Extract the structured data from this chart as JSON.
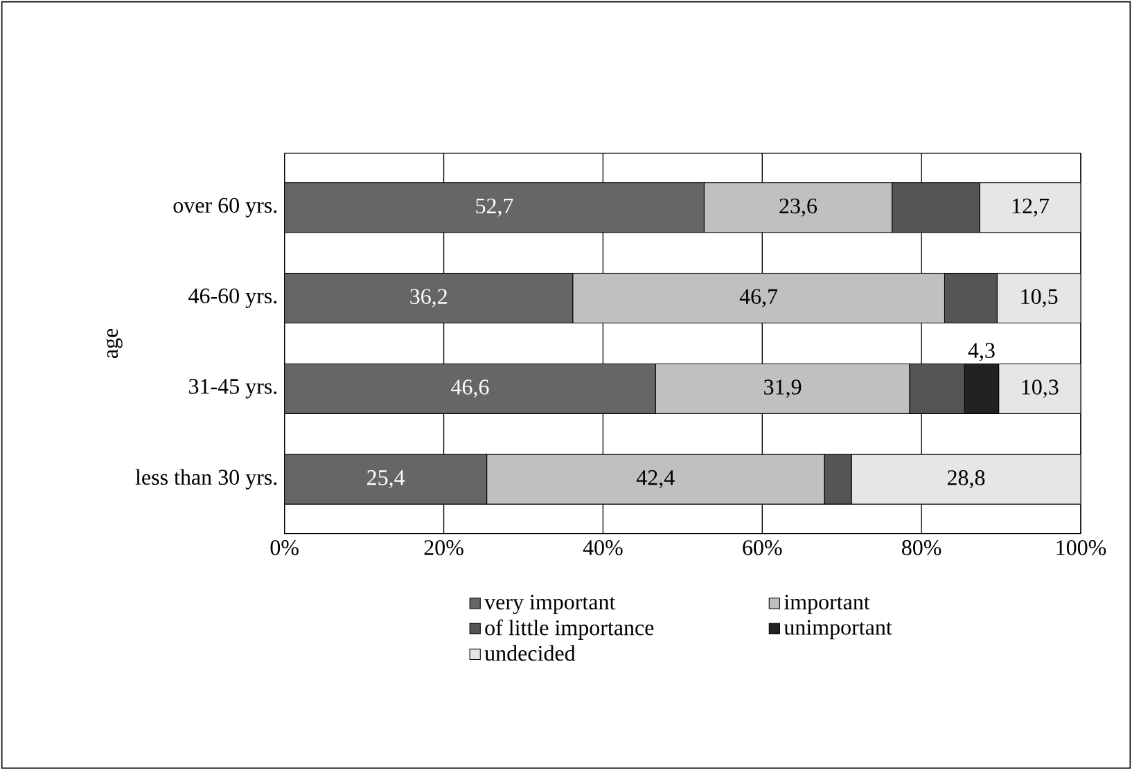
{
  "chart_data": {
    "type": "bar",
    "orientation": "horizontal",
    "stacked": true,
    "ylabel": "age",
    "categories": [
      "over 60 yrs.",
      "46-60 yrs.",
      "31-45 yrs.",
      "less than 30 yrs."
    ],
    "series": [
      {
        "name": "very important",
        "color": "#666666",
        "values": [
          52.7,
          36.2,
          46.6,
          25.4
        ],
        "value_labels": [
          "52,7",
          "36,2",
          "46,6",
          "25,4"
        ]
      },
      {
        "name": "important",
        "color": "#c0c0c0",
        "values": [
          23.6,
          46.7,
          31.9,
          42.4
        ],
        "value_labels": [
          "23,6",
          "46,7",
          "31,9",
          "42,4"
        ]
      },
      {
        "name": "of little importance",
        "color": "#555555",
        "values": [
          11.0,
          6.6,
          6.9,
          3.4
        ],
        "value_labels": [
          null,
          null,
          null,
          null
        ]
      },
      {
        "name": "unimportant",
        "color": "#222222",
        "values": [
          0,
          0,
          4.3,
          0
        ],
        "value_labels": [
          null,
          null,
          "4,3",
          null
        ]
      },
      {
        "name": "undecided",
        "color": "#e6e6e6",
        "values": [
          12.7,
          10.5,
          10.3,
          28.8
        ],
        "value_labels": [
          "12,7",
          "10,5",
          "10,3",
          "28,8"
        ]
      }
    ],
    "xlim": [
      0,
      100
    ],
    "xticks": [
      {
        "value": 0,
        "label": "0%"
      },
      {
        "value": 20,
        "label": "20%"
      },
      {
        "value": 40,
        "label": "40%"
      },
      {
        "value": 60,
        "label": "60%"
      },
      {
        "value": 80,
        "label": "80%"
      },
      {
        "value": 100,
        "label": "100%"
      }
    ],
    "grid": "x",
    "legend": "bottom"
  }
}
